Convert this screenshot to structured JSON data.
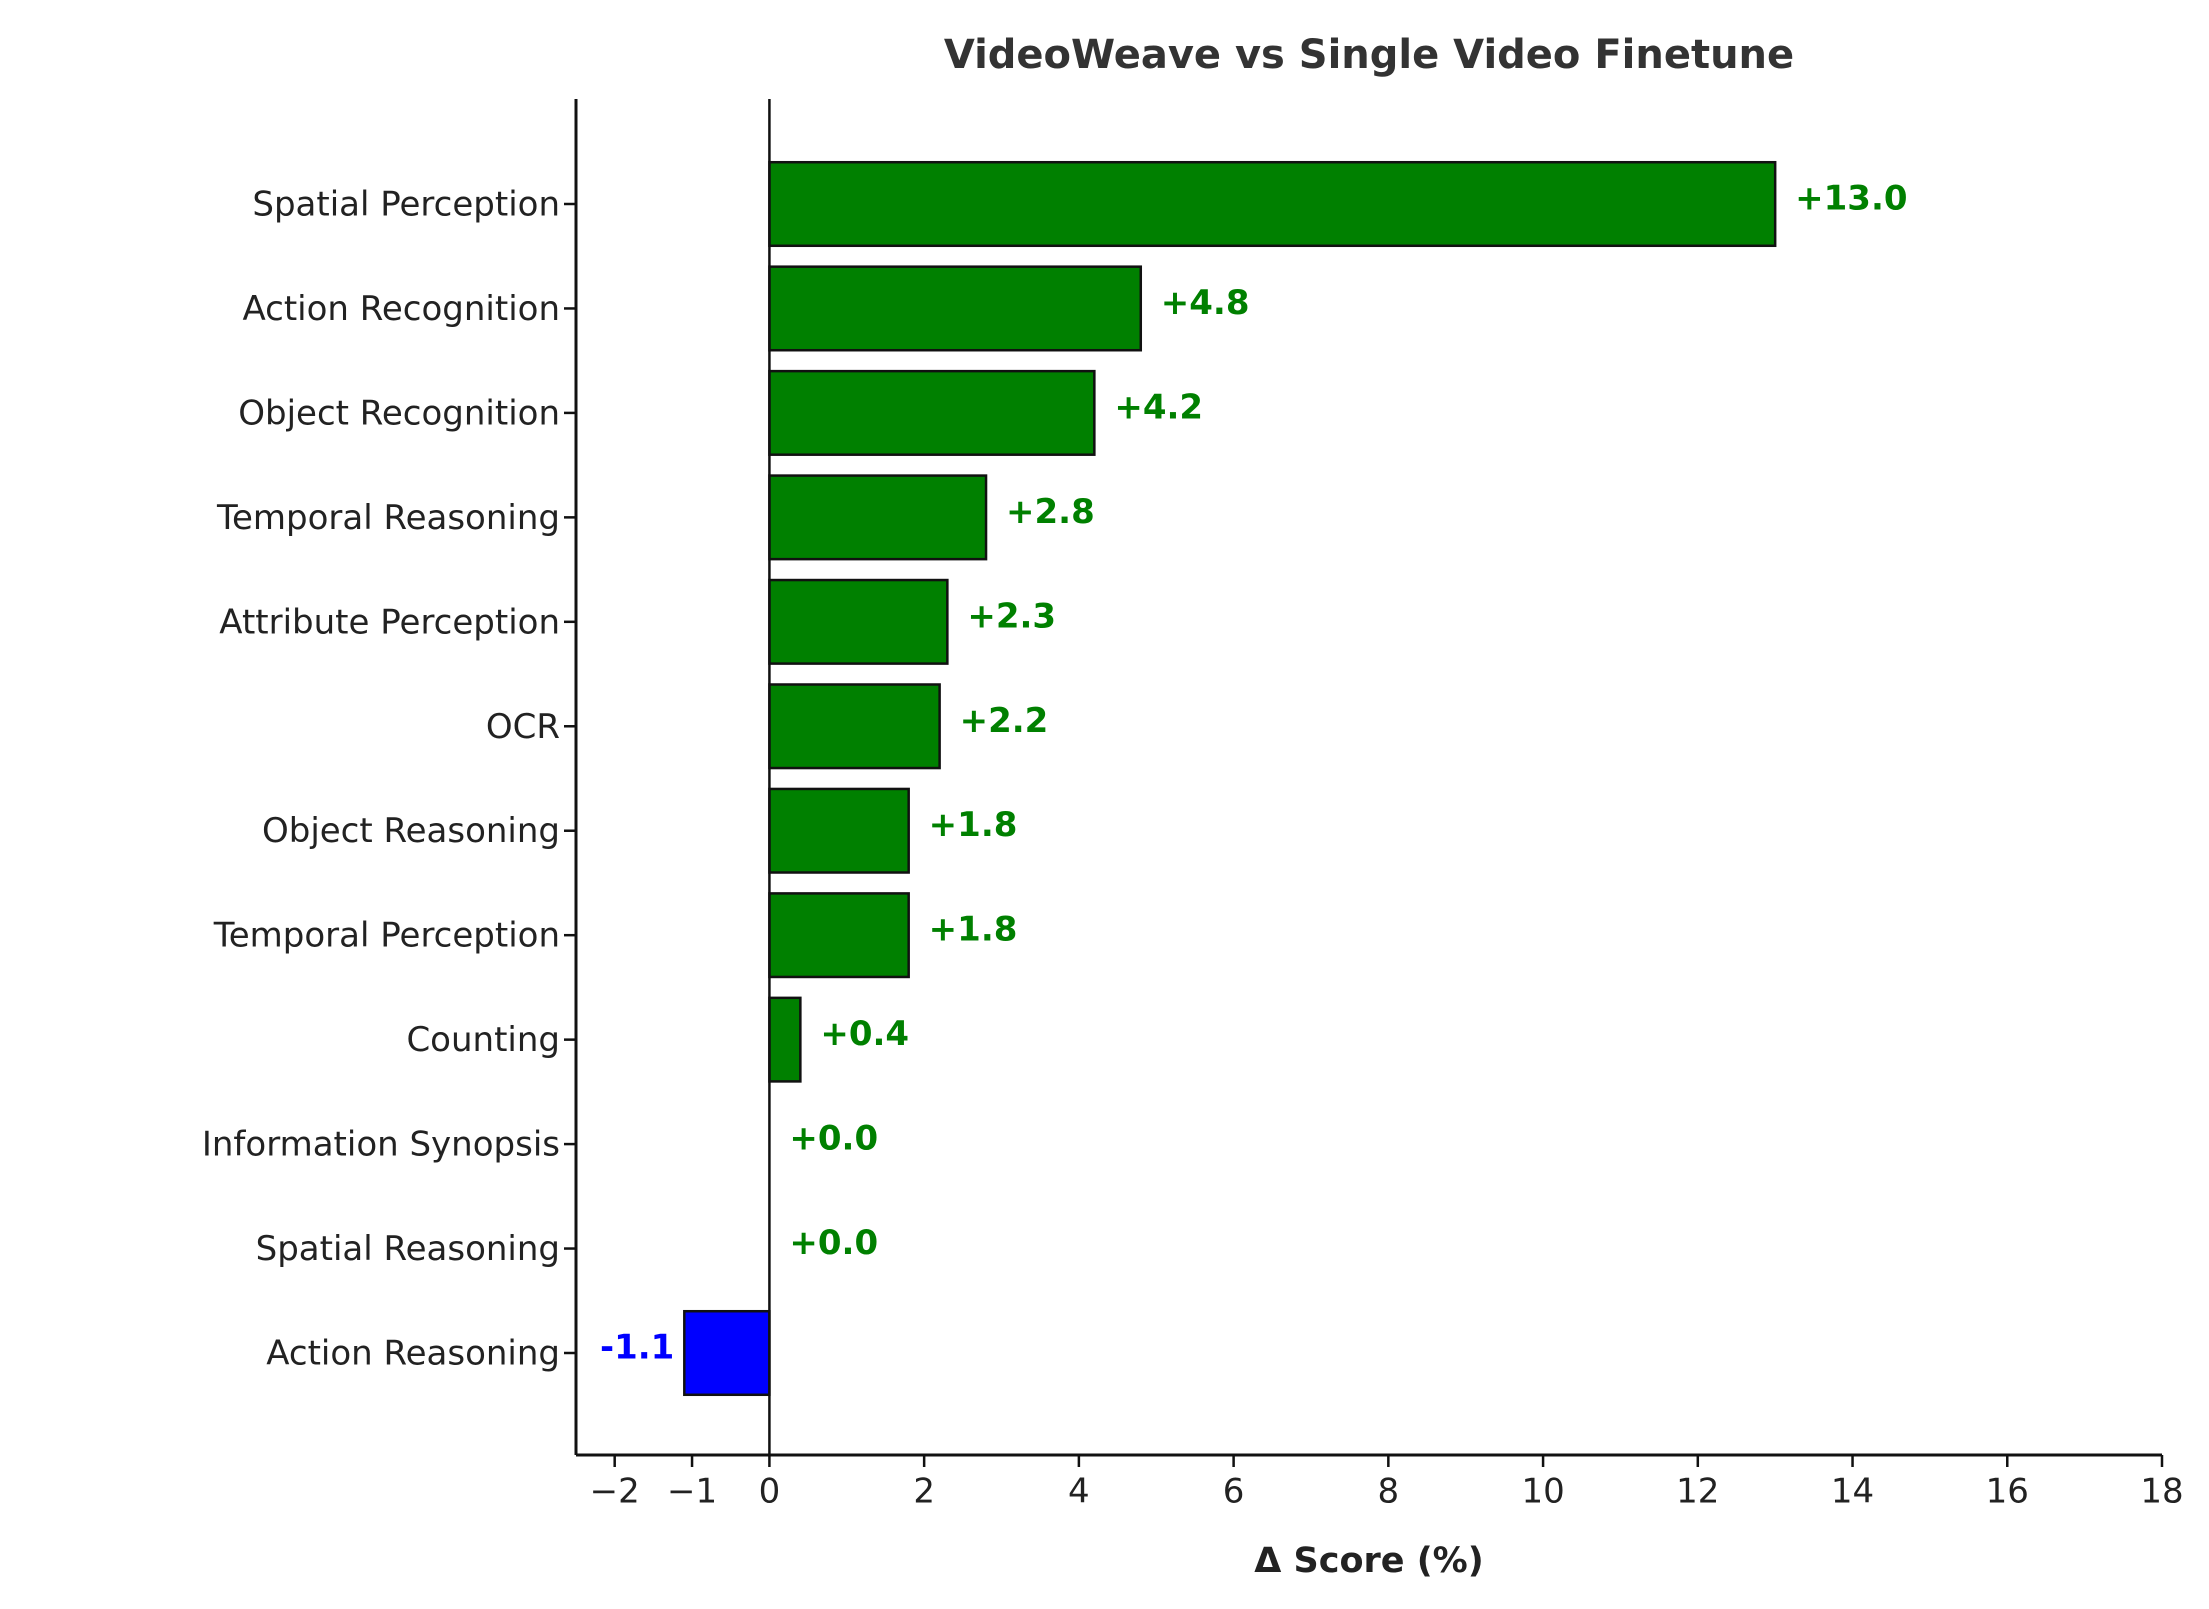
{
  "chart_data": {
    "type": "barh",
    "title": "VideoWeave vs Single Video Finetune",
    "x_label": "Δ Score (%)",
    "categories": [
      "Spatial Perception",
      "Action Recognition",
      "Object Recognition",
      "Temporal Reasoning",
      "Attribute Perception",
      "OCR",
      "Object Reasoning",
      "Temporal Perception",
      "Counting",
      "Information Synopsis",
      "Spatial Reasoning",
      "Action Reasoning"
    ],
    "values": [
      13.0,
      4.8,
      4.2,
      2.8,
      2.3,
      2.2,
      1.8,
      1.8,
      0.4,
      0.0,
      0.0,
      -1.1
    ],
    "value_labels": [
      "+13.0",
      "+4.8",
      "+4.2",
      "+2.8",
      "+2.3",
      "+2.2",
      "+1.8",
      "+1.8",
      "+0.4",
      "+0.0",
      "+0.0",
      "-1.1"
    ],
    "colors": [
      "#008000",
      "#008000",
      "#008000",
      "#008000",
      "#008000",
      "#008000",
      "#008000",
      "#008000",
      "#008000",
      "#008000",
      "#008000",
      "#0000ff"
    ],
    "xlim": [
      -2.5,
      18
    ],
    "xticks": [
      {
        "value": -2,
        "label": "−2"
      },
      {
        "value": -1,
        "label": "−1"
      },
      0,
      2,
      4,
      6,
      8,
      10,
      12,
      14,
      16,
      18
    ]
  }
}
